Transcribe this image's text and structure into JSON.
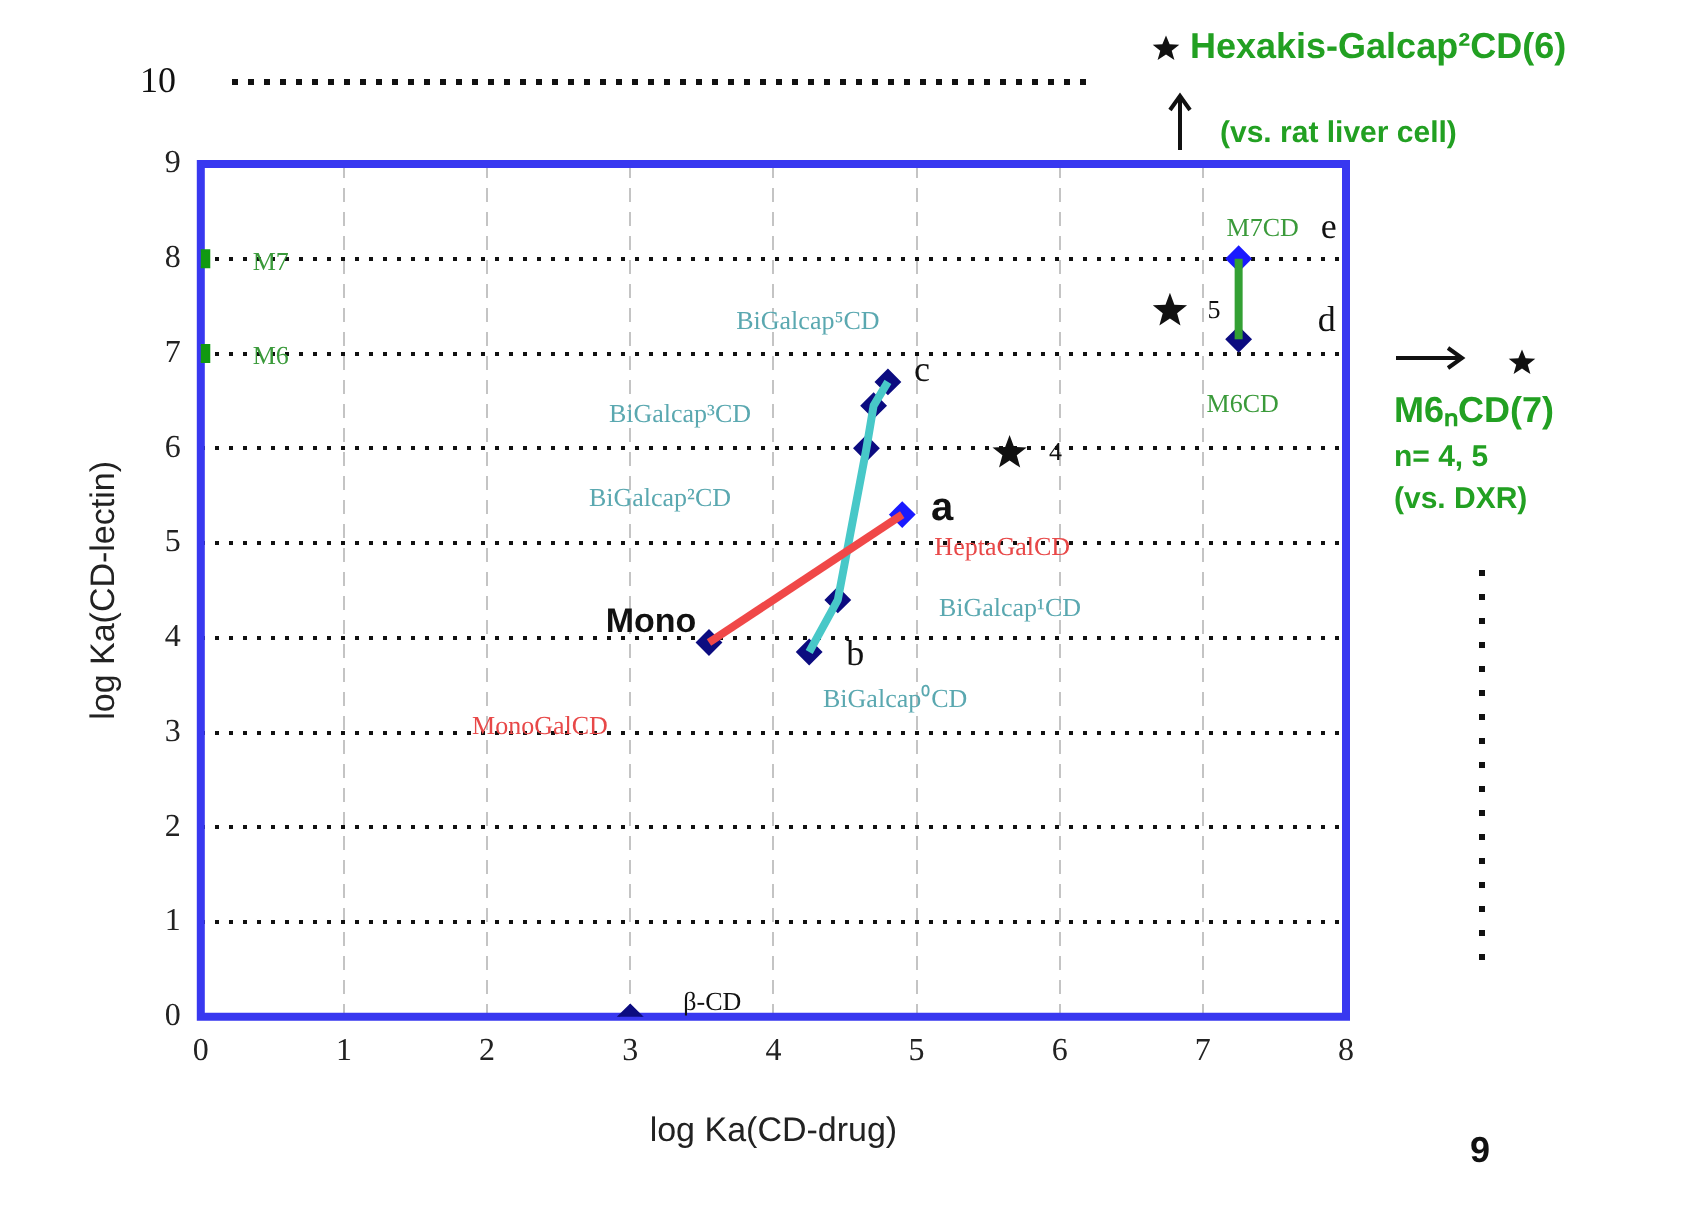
{
  "chart_data": {
    "type": "scatter",
    "xlabel": "log Ka(CD-drug)",
    "ylabel": "log Ka(CD-lectin)",
    "xlim": [
      0,
      8
    ],
    "ylim": [
      0,
      9
    ],
    "xticks": [
      0,
      1,
      2,
      3,
      4,
      5,
      6,
      7,
      8
    ],
    "yticks": [
      0,
      1,
      2,
      3,
      4,
      5,
      6,
      7,
      8,
      9
    ],
    "grid": true,
    "legend": false,
    "series": [
      {
        "type": "line",
        "color": "#f04848",
        "marker": "none",
        "x": [
          3.55,
          4.9
        ],
        "values": [
          3.95,
          5.3
        ]
      },
      {
        "type": "line",
        "color": "#48c8c8",
        "marker": "none",
        "x": [
          4.25,
          4.45,
          4.65,
          4.7,
          4.8
        ],
        "values": [
          3.85,
          4.4,
          6.0,
          6.45,
          6.7
        ]
      },
      {
        "type": "line",
        "color": "#33a033",
        "marker": "none",
        "x": [
          7.25,
          7.25
        ],
        "values": [
          7.15,
          8
        ]
      },
      {
        "type": "scatter",
        "color": "#0c0c80",
        "marker": "diamond",
        "x": [
          3,
          3.55,
          4.25,
          4.45,
          4.65,
          4.7,
          4.8,
          7.25
        ],
        "values": [
          0,
          3.95,
          3.85,
          4.4,
          6.0,
          6.45,
          6.7,
          7.15
        ]
      },
      {
        "type": "scatter",
        "color": "#1a1aff",
        "marker": "diamond",
        "x": [
          4.9,
          7.25
        ],
        "values": [
          5.3,
          8
        ]
      },
      {
        "type": "scatter",
        "color": "#119911",
        "marker": "square",
        "x": [
          0,
          0
        ],
        "values": [
          8,
          7
        ]
      },
      {
        "type": "scatter",
        "color": "#111111",
        "marker": "star",
        "x": [
          5.65,
          6.77
        ],
        "values": [
          5.95,
          7.45
        ]
      }
    ],
    "annotations": [
      {
        "text": "Mono",
        "x": 3.55,
        "y": 3.95
      },
      {
        "text": "a",
        "x": 4.9,
        "y": 5.3
      },
      {
        "text": "b",
        "x": 4.25,
        "y": 3.85
      },
      {
        "text": "c",
        "x": 4.8,
        "y": 6.7
      },
      {
        "text": "d",
        "x": 7.25,
        "y": 7.15
      },
      {
        "text": "e",
        "x": 7.25,
        "y": 8
      },
      {
        "text": "β-CD",
        "x": 3,
        "y": 0
      },
      {
        "text": "M7",
        "x": 0,
        "y": 8
      },
      {
        "text": "M6",
        "x": 0,
        "y": 7
      },
      "MonoGalCD",
      {
        "text": "HeptaGalCD",
        "x": 4.9,
        "y": 5.3
      },
      {
        "text": "BiGalcap⁰CD",
        "x": 4.25,
        "y": 3.85
      },
      "BiGalcap¹CD",
      "BiGalcap²CD",
      "BiGalcap³CD",
      {
        "text": "BiGalcap⁵CD",
        "x": 4.8,
        "y": 6.7
      },
      {
        "text": "M7CD",
        "x": 7.25,
        "y": 8
      },
      {
        "text": "M6CD",
        "x": 7.25,
        "y": 7.15
      },
      {
        "text": "4",
        "x": 5.65,
        "y": 5.95
      },
      {
        "text": "5",
        "x": 6.77,
        "y": 7.45
      },
      "Hexakis-Galcap²CD(6)",
      "(vs. rat liver cell)",
      "M6ₙCD(7)",
      "n= 4, 5",
      "(vs. DXR)",
      "10",
      "9"
    ]
  }
}
